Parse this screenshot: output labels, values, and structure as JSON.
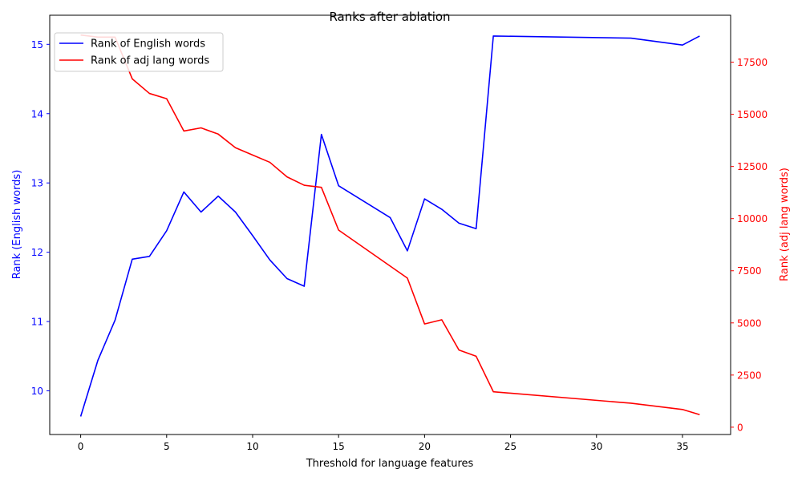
{
  "colors": {
    "series_english": "#0000ff",
    "series_adj": "#ff0000",
    "axes": "#000000",
    "background": "#ffffff"
  },
  "chart_data": {
    "type": "line",
    "title": "Ranks after ablation",
    "xlabel": "Threshold for language features",
    "ylabel_left": "Rank (English words)",
    "ylabel_right": "Rank (adj lang words)",
    "xlim": [
      -1.8,
      37.8
    ],
    "ylim_left": [
      9.37,
      15.42
    ],
    "ylim_right": [
      -350,
      19750
    ],
    "xticks": [
      0,
      5,
      10,
      15,
      20,
      25,
      30,
      35
    ],
    "yticks_left": [
      10,
      11,
      12,
      13,
      14,
      15
    ],
    "yticks_right": [
      0,
      2500,
      5000,
      7500,
      10000,
      12500,
      15000,
      17500
    ],
    "grid": false,
    "legend_position": "top-left",
    "series": [
      {
        "name": "Rank of English words",
        "axis": "left",
        "color": "#0000ff",
        "x": [
          0,
          1,
          2,
          3,
          4,
          5,
          6,
          7,
          8,
          9,
          10,
          11,
          12,
          13,
          14,
          15,
          18,
          19,
          20,
          21,
          22,
          23,
          24,
          32,
          35,
          36
        ],
        "y": [
          9.63,
          10.44,
          11.02,
          11.9,
          11.94,
          12.31,
          12.87,
          12.58,
          12.81,
          12.58,
          12.24,
          11.89,
          11.62,
          11.51,
          13.7,
          12.96,
          12.5,
          12.02,
          12.77,
          12.62,
          12.42,
          12.34,
          15.12,
          15.09,
          14.99,
          15.12
        ]
      },
      {
        "name": "Rank of adj lang words",
        "axis": "right",
        "color": "#ff0000",
        "x": [
          0,
          1,
          2,
          3,
          4,
          5,
          6,
          7,
          8,
          9,
          10,
          11,
          12,
          13,
          14,
          15,
          19,
          20,
          21,
          22,
          23,
          24,
          32,
          35,
          36
        ],
        "y": [
          18800,
          18700,
          18700,
          16700,
          16000,
          15750,
          14200,
          14350,
          14050,
          13400,
          13050,
          12700,
          12000,
          11600,
          11500,
          9450,
          7150,
          4950,
          5150,
          3700,
          3400,
          1700,
          1150,
          850,
          600
        ]
      }
    ]
  }
}
